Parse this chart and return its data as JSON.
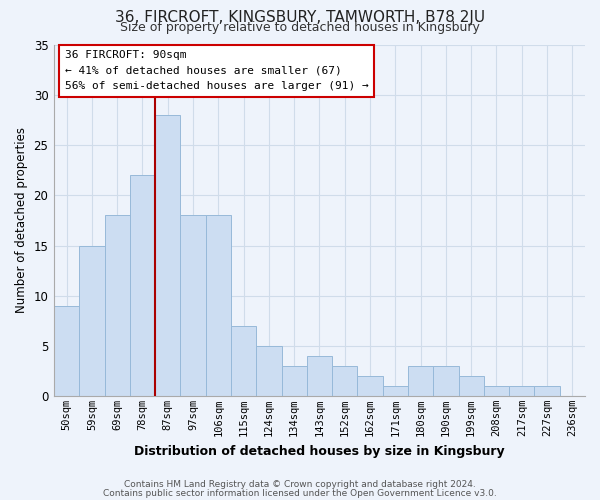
{
  "title": "36, FIRCROFT, KINGSBURY, TAMWORTH, B78 2JU",
  "subtitle": "Size of property relative to detached houses in Kingsbury",
  "xlabel": "Distribution of detached houses by size in Kingsbury",
  "ylabel": "Number of detached properties",
  "footer_line1": "Contains HM Land Registry data © Crown copyright and database right 2024.",
  "footer_line2": "Contains public sector information licensed under the Open Government Licence v3.0.",
  "bar_labels": [
    "50sqm",
    "59sqm",
    "69sqm",
    "78sqm",
    "87sqm",
    "97sqm",
    "106sqm",
    "115sqm",
    "124sqm",
    "134sqm",
    "143sqm",
    "152sqm",
    "162sqm",
    "171sqm",
    "180sqm",
    "190sqm",
    "199sqm",
    "208sqm",
    "217sqm",
    "227sqm",
    "236sqm"
  ],
  "bar_values": [
    9,
    15,
    18,
    22,
    28,
    18,
    18,
    7,
    5,
    3,
    4,
    3,
    2,
    1,
    3,
    3,
    2,
    1,
    1,
    1,
    0
  ],
  "bar_color": "#ccddf2",
  "bar_edge_color": "#97b9d9",
  "vline_x": 4.0,
  "vline_color": "#aa0000",
  "ylim": [
    0,
    35
  ],
  "yticks": [
    0,
    5,
    10,
    15,
    20,
    25,
    30,
    35
  ],
  "annotation_title": "36 FIRCROFT: 90sqm",
  "annotation_line1": "← 41% of detached houses are smaller (67)",
  "annotation_line2": "56% of semi-detached houses are larger (91) →",
  "annotation_box_color": "#ffffff",
  "annotation_box_edge": "#cc0000",
  "grid_color": "#d0dcea",
  "background_color": "#eef3fb"
}
